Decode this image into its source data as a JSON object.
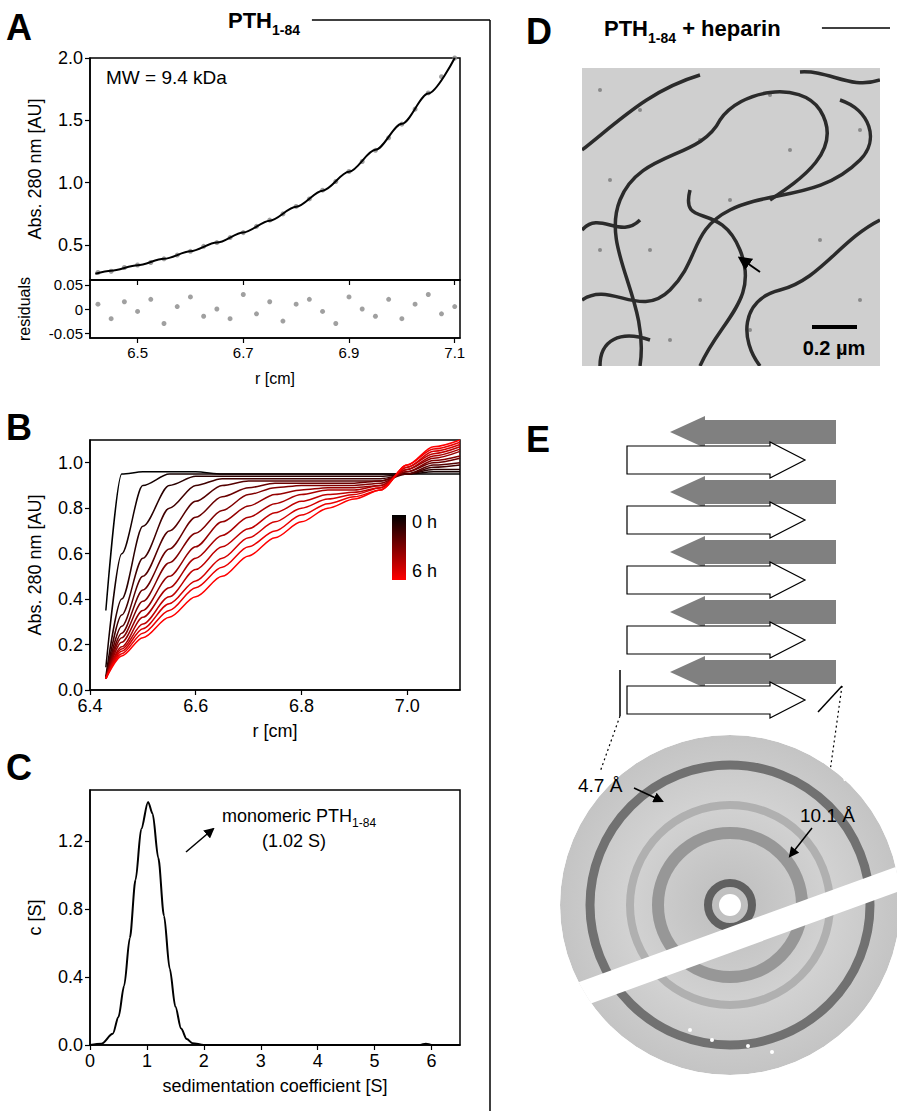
{
  "header": {
    "text": "PTH",
    "subscript": "1-84"
  },
  "chart_data": [
    {
      "panel_label": "A",
      "type": "scatter",
      "annotation": "MW = 9.4 kDa",
      "ylabel": "Abs. 280 nm [AU]",
      "xlim": [
        6.41,
        7.11
      ],
      "xticks": [
        6.5,
        6.7,
        6.9,
        7.1
      ],
      "ylim": [
        0.22,
        2.0
      ],
      "yticks": [
        0.5,
        {
          "value": 1,
          "label": "1.0"
        },
        1.5,
        {
          "value": 2,
          "label": "2.0"
        }
      ],
      "tick_labels": "y",
      "grid": false,
      "series": [
        {
          "type": "scatter",
          "marker": "circle",
          "color": "#888888",
          "x": [
            6.425,
            6.45,
            6.475,
            6.5,
            6.525,
            6.55,
            6.575,
            6.6,
            6.625,
            6.65,
            6.675,
            6.7,
            6.725,
            6.75,
            6.775,
            6.8,
            6.825,
            6.85,
            6.875,
            6.9,
            6.925,
            6.95,
            6.975,
            7.0,
            7.025,
            7.05,
            7.075,
            7.1
          ],
          "values": [
            0.28,
            0.29,
            0.32,
            0.34,
            0.36,
            0.39,
            0.42,
            0.45,
            0.49,
            0.52,
            0.56,
            0.6,
            0.65,
            0.7,
            0.75,
            0.81,
            0.87,
            0.94,
            1.01,
            1.09,
            1.17,
            1.26,
            1.36,
            1.47,
            1.59,
            1.72,
            1.85,
            2.0
          ]
        },
        {
          "type": "line",
          "line_style": "solid",
          "color": "#000000",
          "x": [
            6.42,
            6.45,
            6.5,
            6.55,
            6.6,
            6.65,
            6.7,
            6.75,
            6.8,
            6.85,
            6.9,
            6.95,
            7.0,
            7.05,
            7.1
          ],
          "values": [
            0.27,
            0.294,
            0.338,
            0.39,
            0.45,
            0.52,
            0.601,
            0.696,
            0.807,
            0.936,
            1.087,
            1.264,
            1.472,
            1.715,
            2.0
          ]
        }
      ]
    },
    {
      "type": "scatter",
      "xlabel": "r [cm]",
      "ylabel": "residuals",
      "xlim": [
        6.41,
        7.11
      ],
      "xticks": [
        6.5,
        6.7,
        6.9,
        7.1
      ],
      "ylim": [
        -0.06,
        0.06
      ],
      "yticks": [
        -0.05,
        0,
        0.05
      ],
      "grid": false,
      "marker": "circle",
      "color": "#888888",
      "x": [
        6.425,
        6.45,
        6.475,
        6.5,
        6.525,
        6.55,
        6.575,
        6.6,
        6.625,
        6.65,
        6.675,
        6.7,
        6.725,
        6.75,
        6.775,
        6.8,
        6.825,
        6.85,
        6.875,
        6.9,
        6.925,
        6.95,
        6.975,
        7.0,
        7.025,
        7.05,
        7.075,
        7.1
      ],
      "values": [
        0.01,
        -0.02,
        0.015,
        -0.005,
        0.02,
        -0.03,
        0.005,
        0.025,
        -0.015,
        0.0,
        -0.02,
        0.03,
        -0.01,
        0.015,
        -0.025,
        0.01,
        0.02,
        -0.005,
        -0.03,
        0.025,
        0.0,
        -0.015,
        0.02,
        -0.02,
        0.01,
        0.03,
        -0.01,
        0.005
      ]
    },
    {
      "panel_label": "B",
      "type": "line",
      "xlabel": "r [cm]",
      "ylabel": "Abs. 280 nm [AU]",
      "xlim": [
        6.4,
        7.1
      ],
      "xticks": [
        6.4,
        6.6,
        6.8,
        {
          "value": 7,
          "label": "7.0"
        }
      ],
      "ylim": [
        0,
        1.1
      ],
      "yticks": [
        {
          "value": 0,
          "label": "0.0"
        },
        0.2,
        0.4,
        0.6,
        0.8,
        {
          "value": 1,
          "label": "1.0"
        }
      ],
      "grid": false,
      "colorbar": {
        "labels": [
          "0 h",
          "6 h"
        ],
        "colors": [
          "#000000",
          "#ff0000"
        ]
      },
      "x": [
        6.43,
        6.46,
        6.5,
        6.55,
        6.6,
        6.65,
        6.7,
        6.75,
        6.8,
        6.85,
        6.9,
        6.95,
        7.0,
        7.05,
        7.1
      ],
      "series": [
        {
          "color": "#000000",
          "values": [
            0.35,
            0.95,
            0.96,
            0.96,
            0.96,
            0.95,
            0.95,
            0.95,
            0.95,
            0.95,
            0.95,
            0.95,
            0.95,
            0.95,
            0.95
          ]
        },
        {
          "color": "#150000",
          "values": [
            0.1,
            0.6,
            0.9,
            0.95,
            0.95,
            0.95,
            0.95,
            0.95,
            0.95,
            0.95,
            0.95,
            0.95,
            0.95,
            0.96,
            0.96
          ]
        },
        {
          "color": "#2a0000",
          "values": [
            0.06,
            0.4,
            0.72,
            0.9,
            0.94,
            0.94,
            0.94,
            0.94,
            0.94,
            0.94,
            0.94,
            0.94,
            0.95,
            0.97,
            0.97
          ]
        },
        {
          "color": "#400000",
          "values": [
            0.05,
            0.33,
            0.58,
            0.8,
            0.9,
            0.93,
            0.93,
            0.93,
            0.93,
            0.93,
            0.93,
            0.93,
            0.95,
            0.98,
            0.99
          ]
        },
        {
          "color": "#550000",
          "values": [
            0.05,
            0.28,
            0.5,
            0.7,
            0.83,
            0.9,
            0.92,
            0.92,
            0.92,
            0.92,
            0.92,
            0.92,
            0.95,
            0.99,
            1.0
          ]
        },
        {
          "color": "#6a0000",
          "values": [
            0.05,
            0.25,
            0.44,
            0.62,
            0.76,
            0.85,
            0.89,
            0.91,
            0.91,
            0.91,
            0.91,
            0.92,
            0.96,
            1.0,
            1.02
          ]
        },
        {
          "color": "#800000",
          "values": [
            0.05,
            0.23,
            0.39,
            0.56,
            0.69,
            0.79,
            0.86,
            0.89,
            0.9,
            0.9,
            0.9,
            0.91,
            0.96,
            1.01,
            1.03
          ]
        },
        {
          "color": "#950000",
          "values": [
            0.05,
            0.21,
            0.35,
            0.5,
            0.63,
            0.74,
            0.81,
            0.86,
            0.88,
            0.89,
            0.89,
            0.9,
            0.97,
            1.02,
            1.05
          ]
        },
        {
          "color": "#aa0000",
          "values": [
            0.05,
            0.19,
            0.32,
            0.45,
            0.58,
            0.68,
            0.76,
            0.82,
            0.86,
            0.88,
            0.88,
            0.9,
            0.97,
            1.03,
            1.06
          ]
        },
        {
          "color": "#bf0000",
          "values": [
            0.05,
            0.18,
            0.29,
            0.41,
            0.53,
            0.63,
            0.71,
            0.78,
            0.83,
            0.86,
            0.87,
            0.89,
            0.98,
            1.04,
            1.07
          ]
        },
        {
          "color": "#d40000",
          "values": [
            0.05,
            0.17,
            0.27,
            0.38,
            0.48,
            0.58,
            0.67,
            0.74,
            0.8,
            0.84,
            0.86,
            0.89,
            0.98,
            1.05,
            1.08
          ]
        },
        {
          "color": "#ea0000",
          "values": [
            0.05,
            0.16,
            0.25,
            0.35,
            0.45,
            0.54,
            0.63,
            0.7,
            0.77,
            0.82,
            0.85,
            0.88,
            0.99,
            1.06,
            1.09
          ]
        },
        {
          "color": "#ff0000",
          "values": [
            0.05,
            0.15,
            0.23,
            0.32,
            0.41,
            0.5,
            0.59,
            0.67,
            0.74,
            0.8,
            0.84,
            0.88,
            0.99,
            1.07,
            1.1
          ]
        }
      ]
    },
    {
      "panel_label": "C",
      "type": "line",
      "annotation": {
        "text": "monomeric PTH",
        "subscript": "1-84",
        "detail": "(1.02 S)"
      },
      "xlabel": "sedimentation coefficient [S]",
      "ylabel": "c [S]",
      "xlim": [
        0,
        6.5
      ],
      "xticks": [
        0,
        1,
        2,
        3,
        4,
        5,
        6
      ],
      "ylim": [
        0,
        1.5
      ],
      "yticks": [
        {
          "value": 0,
          "label": "0.0"
        },
        0.4,
        0.8,
        1.2
      ],
      "grid": false,
      "color": "#000000",
      "x": [
        0,
        0.2,
        0.4,
        0.5,
        0.6,
        0.7,
        0.8,
        0.9,
        1.02,
        1.1,
        1.2,
        1.3,
        1.4,
        1.5,
        1.6,
        1.7,
        1.8,
        2.0,
        3.0,
        4.0,
        5.0,
        5.8,
        5.9,
        6.0,
        6.5
      ],
      "values": [
        0,
        0.007,
        0.066,
        0.165,
        0.349,
        0.63,
        0.971,
        1.27,
        1.43,
        1.36,
        1.1,
        0.76,
        0.45,
        0.226,
        0.097,
        0.035,
        0.011,
        0,
        0,
        0,
        0,
        0,
        0.008,
        0,
        0
      ]
    }
  ],
  "panel_D": {
    "label": "D",
    "header": {
      "text": "PTH",
      "subscript": "1-84",
      "suffix": " + heparin"
    },
    "scale_bar": "0.2 µm"
  },
  "panel_E": {
    "label": "E",
    "spacing_labels": [
      "4.7 Å",
      "10.1 Å"
    ]
  }
}
